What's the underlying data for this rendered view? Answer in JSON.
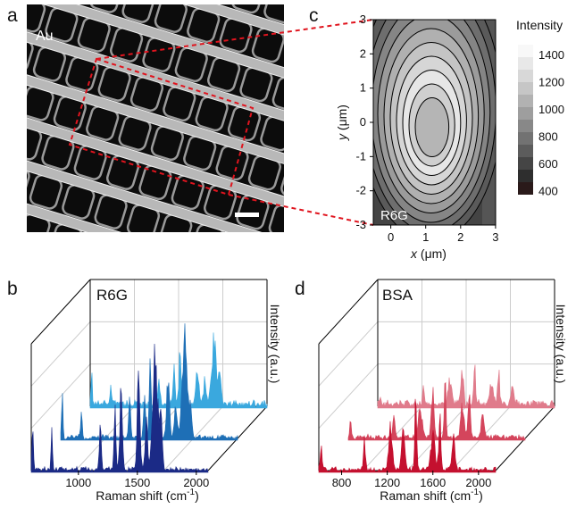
{
  "panels": {
    "a": {
      "label": "a",
      "material": "Au"
    },
    "b": {
      "label": "b",
      "sample": "R6G",
      "y_label": "Intensity (a.u.)",
      "x_label": {
        "text": "Raman shift (cm",
        "sup": "-1",
        "end": ")"
      },
      "x_ticks": [
        "1000",
        "1500",
        "2000"
      ]
    },
    "c": {
      "label": "c",
      "sample": "R6G",
      "x_label": {
        "var": "x",
        "unit": "(μm)"
      },
      "y_label": {
        "var": "y",
        "unit": "(μm)"
      },
      "x_ticks": [
        "0",
        "1",
        "2",
        "3"
      ],
      "y_ticks": [
        "3",
        "2",
        "1",
        "0",
        "-1",
        "-2",
        "-3"
      ],
      "colorbar_title": "Intensity",
      "colorbar_ticks": [
        "1400",
        "1200",
        "1000",
        "800",
        "600",
        "400"
      ]
    },
    "d": {
      "label": "d",
      "sample": "BSA",
      "y_label": "Intensity (a.u.)",
      "x_label": {
        "text": "Raman shift (cm",
        "sup": "-1",
        "end": ")"
      },
      "x_ticks": [
        "800",
        "1200",
        "1600",
        "2000"
      ]
    }
  }
}
